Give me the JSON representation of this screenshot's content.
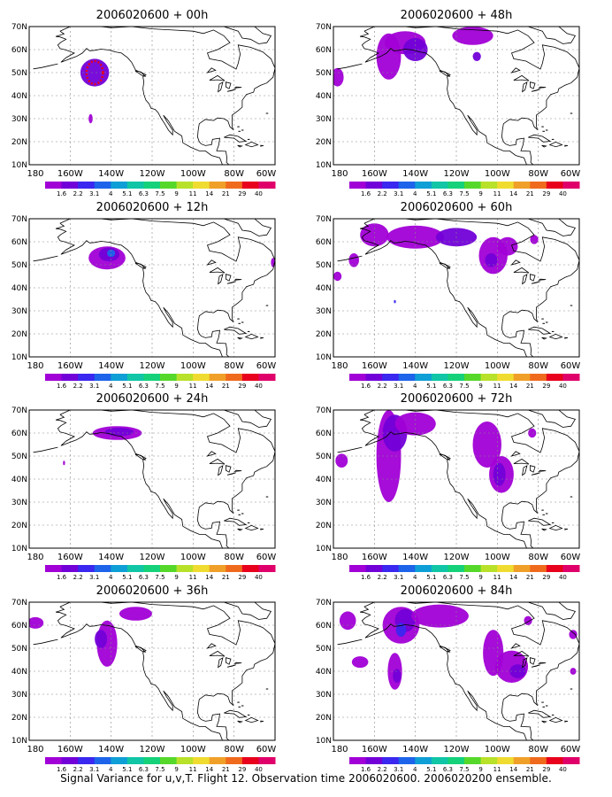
{
  "chart_data": {
    "type": "heatmap",
    "caption": "Signal Variance for u,v,T. Flight 12. Observation time 2006020600. 2006020200 ensemble.",
    "x_ticks": [
      "180",
      "160W",
      "140W",
      "120W",
      "100W",
      "80W",
      "60W"
    ],
    "y_ticks": [
      "10N",
      "20N",
      "30N",
      "40N",
      "50N",
      "60N",
      "70N"
    ],
    "xlim": [
      -180,
      -60
    ],
    "ylim": [
      10,
      70
    ],
    "grid": true,
    "colorbar": {
      "labels": [
        "1.6",
        "2.2",
        "3.1",
        "4",
        "5.1",
        "6.3",
        "7.5",
        "9",
        "11",
        "14",
        "21",
        "29",
        "40"
      ],
      "colors": [
        "#a100d6",
        "#7200d8",
        "#3a27f0",
        "#1d64ea",
        "#0e9fd6",
        "#10c6a6",
        "#15d27a",
        "#56d82b",
        "#b8e12a",
        "#f0dc30",
        "#f0a028",
        "#f06a1e",
        "#e8001c",
        "#e0006a"
      ]
    },
    "panels": [
      {
        "title": "2006020600 + 00h",
        "blobs": [
          {
            "lon": -148,
            "lat": 50,
            "rx": 7,
            "ry": 6,
            "level": 1
          },
          {
            "lon": -148,
            "lat": 50,
            "rx": 4,
            "ry": 5,
            "level": 12,
            "ring": true
          },
          {
            "lon": -150,
            "lat": 30,
            "rx": 1,
            "ry": 2,
            "level": 0
          }
        ]
      },
      {
        "title": "2006020600 + 12h",
        "blobs": [
          {
            "lon": -142,
            "lat": 53,
            "rx": 9,
            "ry": 5,
            "level": 0
          },
          {
            "lon": -141,
            "lat": 54.5,
            "rx": 5,
            "ry": 3,
            "level": 1
          },
          {
            "lon": -140,
            "lat": 55,
            "rx": 2,
            "ry": 1.6,
            "level": 3
          },
          {
            "lon": -61,
            "lat": 51,
            "rx": 1,
            "ry": 2,
            "level": 0
          }
        ]
      },
      {
        "title": "2006020600 + 24h",
        "blobs": [
          {
            "lon": -137,
            "lat": 60,
            "rx": 12,
            "ry": 3,
            "level": 0
          },
          {
            "lon": -136,
            "lat": 60.5,
            "rx": 7,
            "ry": 1.8,
            "level": 1
          },
          {
            "lon": -163,
            "lat": 47,
            "rx": 0.5,
            "ry": 1,
            "level": 0
          }
        ]
      },
      {
        "title": "2006020600 + 36h",
        "blobs": [
          {
            "lon": -177,
            "lat": 61,
            "rx": 4,
            "ry": 2.5,
            "level": 0
          },
          {
            "lon": -142,
            "lat": 52,
            "rx": 5,
            "ry": 10,
            "level": 0
          },
          {
            "lon": -145,
            "lat": 54,
            "rx": 3,
            "ry": 4,
            "level": 1
          },
          {
            "lon": -128,
            "lat": 65,
            "rx": 8,
            "ry": 3,
            "level": 0
          }
        ]
      },
      {
        "title": "2006020600 + 48h",
        "blobs": [
          {
            "lon": -178,
            "lat": 48,
            "rx": 3,
            "ry": 4,
            "level": 0
          },
          {
            "lon": -153,
            "lat": 57,
            "rx": 6,
            "ry": 10,
            "level": 0
          },
          {
            "lon": -145,
            "lat": 63,
            "rx": 10,
            "ry": 5,
            "level": 0
          },
          {
            "lon": -140,
            "lat": 60,
            "rx": 6,
            "ry": 5,
            "level": 1
          },
          {
            "lon": -112,
            "lat": 66,
            "rx": 10,
            "ry": 4,
            "level": 0
          },
          {
            "lon": -110,
            "lat": 57,
            "rx": 2,
            "ry": 2,
            "level": 1
          }
        ]
      },
      {
        "title": "2006020600 + 60h",
        "blobs": [
          {
            "lon": -178,
            "lat": 45,
            "rx": 2,
            "ry": 2,
            "level": 0
          },
          {
            "lon": -170,
            "lat": 52,
            "rx": 2.5,
            "ry": 3,
            "level": 0
          },
          {
            "lon": -160,
            "lat": 63,
            "rx": 7,
            "ry": 5,
            "level": 0
          },
          {
            "lon": -140,
            "lat": 62,
            "rx": 14,
            "ry": 5,
            "level": 0
          },
          {
            "lon": -120,
            "lat": 62,
            "rx": 10,
            "ry": 4,
            "level": 1
          },
          {
            "lon": -102,
            "lat": 54,
            "rx": 7,
            "ry": 8,
            "level": 0
          },
          {
            "lon": -103,
            "lat": 52,
            "rx": 3,
            "ry": 3,
            "level": 1
          },
          {
            "lon": -95,
            "lat": 58,
            "rx": 5,
            "ry": 4,
            "level": 0
          },
          {
            "lon": -82,
            "lat": 61,
            "rx": 2,
            "ry": 2,
            "level": 0
          },
          {
            "lon": -150,
            "lat": 34,
            "rx": 0.5,
            "ry": 0.7,
            "level": 2
          }
        ]
      },
      {
        "title": "2006020600 + 72h",
        "blobs": [
          {
            "lon": -176,
            "lat": 48,
            "rx": 3,
            "ry": 3,
            "level": 0
          },
          {
            "lon": -153,
            "lat": 50,
            "rx": 6,
            "ry": 20,
            "level": 0
          },
          {
            "lon": -150,
            "lat": 60,
            "rx": 6,
            "ry": 8,
            "level": 1
          },
          {
            "lon": -140,
            "lat": 64,
            "rx": 10,
            "ry": 5,
            "level": 0
          },
          {
            "lon": -105,
            "lat": 55,
            "rx": 7,
            "ry": 10,
            "level": 0
          },
          {
            "lon": -98,
            "lat": 42,
            "rx": 6,
            "ry": 8,
            "level": 0
          },
          {
            "lon": -99,
            "lat": 42,
            "rx": 3,
            "ry": 5,
            "level": 1
          },
          {
            "lon": -83,
            "lat": 60,
            "rx": 2,
            "ry": 2,
            "level": 0
          }
        ]
      },
      {
        "title": "2006020600 + 84h",
        "blobs": [
          {
            "lon": -173,
            "lat": 62,
            "rx": 4,
            "ry": 4,
            "level": 0
          },
          {
            "lon": -147,
            "lat": 60,
            "rx": 9,
            "ry": 8,
            "level": 0
          },
          {
            "lon": -145,
            "lat": 62,
            "rx": 5,
            "ry": 5,
            "level": 1
          },
          {
            "lon": -147,
            "lat": 58,
            "rx": 2.5,
            "ry": 3,
            "level": 2
          },
          {
            "lon": -128,
            "lat": 64,
            "rx": 14,
            "ry": 5,
            "level": 0
          },
          {
            "lon": -150,
            "lat": 40,
            "rx": 3.5,
            "ry": 8,
            "level": 0
          },
          {
            "lon": -149,
            "lat": 38,
            "rx": 2,
            "ry": 3,
            "level": 1
          },
          {
            "lon": -167,
            "lat": 44,
            "rx": 4,
            "ry": 2.5,
            "level": 0
          },
          {
            "lon": -102,
            "lat": 48,
            "rx": 5,
            "ry": 10,
            "level": 0
          },
          {
            "lon": -93,
            "lat": 42,
            "rx": 8,
            "ry": 7,
            "level": 0
          },
          {
            "lon": -90,
            "lat": 40,
            "rx": 4,
            "ry": 3,
            "level": 1
          },
          {
            "lon": -85,
            "lat": 62,
            "rx": 2,
            "ry": 2,
            "level": 0
          },
          {
            "lon": -63,
            "lat": 56,
            "rx": 2,
            "ry": 2,
            "level": 0
          },
          {
            "lon": -63,
            "lat": 40,
            "rx": 1.5,
            "ry": 1.5,
            "level": 0
          }
        ]
      }
    ]
  }
}
